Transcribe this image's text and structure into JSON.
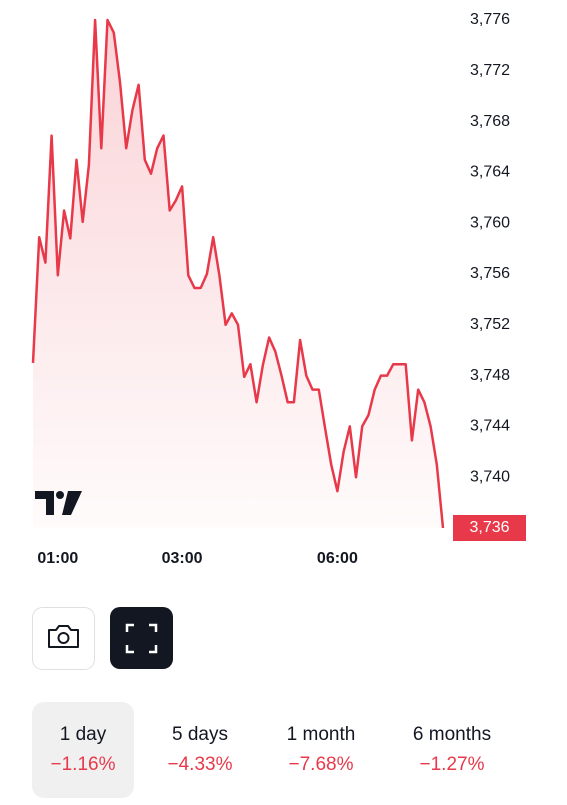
{
  "chart_data": {
    "type": "area",
    "categories": [
      null,
      null,
      null,
      null,
      "01:00",
      null,
      null,
      null,
      null,
      null,
      null,
      null,
      null,
      null,
      null,
      null,
      null,
      null,
      null,
      null,
      null,
      null,
      null,
      null,
      "03:00",
      null,
      null,
      null,
      null,
      null,
      null,
      null,
      null,
      null,
      null,
      null,
      null,
      null,
      null,
      null,
      null,
      null,
      null,
      null,
      null,
      null,
      null,
      null,
      null,
      "06:00",
      null,
      null,
      null,
      null,
      null,
      null,
      null,
      null,
      null,
      null,
      null,
      null,
      null,
      null,
      null,
      null,
      null
    ],
    "series": [
      {
        "color": "#e8394a",
        "values": [
          3749,
          3758.9,
          3756.9,
          3766.9,
          3755.9,
          3761,
          3758.8,
          3765,
          3760.1,
          3764.6,
          3776,
          3765.9,
          3776,
          3775,
          3771.1,
          3765.9,
          3768.9,
          3770.9,
          3765,
          3763.9,
          3765.9,
          3766.9,
          3761,
          3761.8,
          3762.9,
          3755.9,
          3754.9,
          3754.9,
          3756,
          3758.9,
          3755.9,
          3752,
          3752.9,
          3752,
          3747.9,
          3748.9,
          3745.9,
          3748.8,
          3751,
          3749.9,
          3748,
          3745.9,
          3745.9,
          3750.8,
          3748,
          3746.9,
          3746.9,
          3743.9,
          3741,
          3738.9,
          3742,
          3744,
          3740,
          3744,
          3744.9,
          3746.9,
          3748,
          3748,
          3748.9,
          3748.9,
          3748.9,
          3742.9,
          3746.9,
          3745.9,
          3744,
          3741,
          3736
        ]
      }
    ],
    "ylim": [
      3736,
      3776
    ],
    "yticks": [
      {
        "value": 3776,
        "label": "3,776"
      },
      {
        "value": 3772,
        "label": "3,772"
      },
      {
        "value": 3768,
        "label": "3,768"
      },
      {
        "value": 3764,
        "label": "3,764"
      },
      {
        "value": 3760,
        "label": "3,760"
      },
      {
        "value": 3756,
        "label": "3,756"
      },
      {
        "value": 3752,
        "label": "3,752"
      },
      {
        "value": 3748,
        "label": "3,748"
      },
      {
        "value": 3744,
        "label": "3,744"
      },
      {
        "value": 3740,
        "label": "3,740"
      }
    ],
    "price_label": {
      "value": 3736,
      "label": "3,736"
    },
    "grid": false
  },
  "periods": [
    {
      "label": "1 day",
      "change": "−1.16%",
      "selected": true
    },
    {
      "label": "5 days",
      "change": "−4.33%",
      "selected": false
    },
    {
      "label": "1 month",
      "change": "−7.68%",
      "selected": false
    },
    {
      "label": "6 months",
      "change": "−1.27%",
      "selected": false
    }
  ]
}
